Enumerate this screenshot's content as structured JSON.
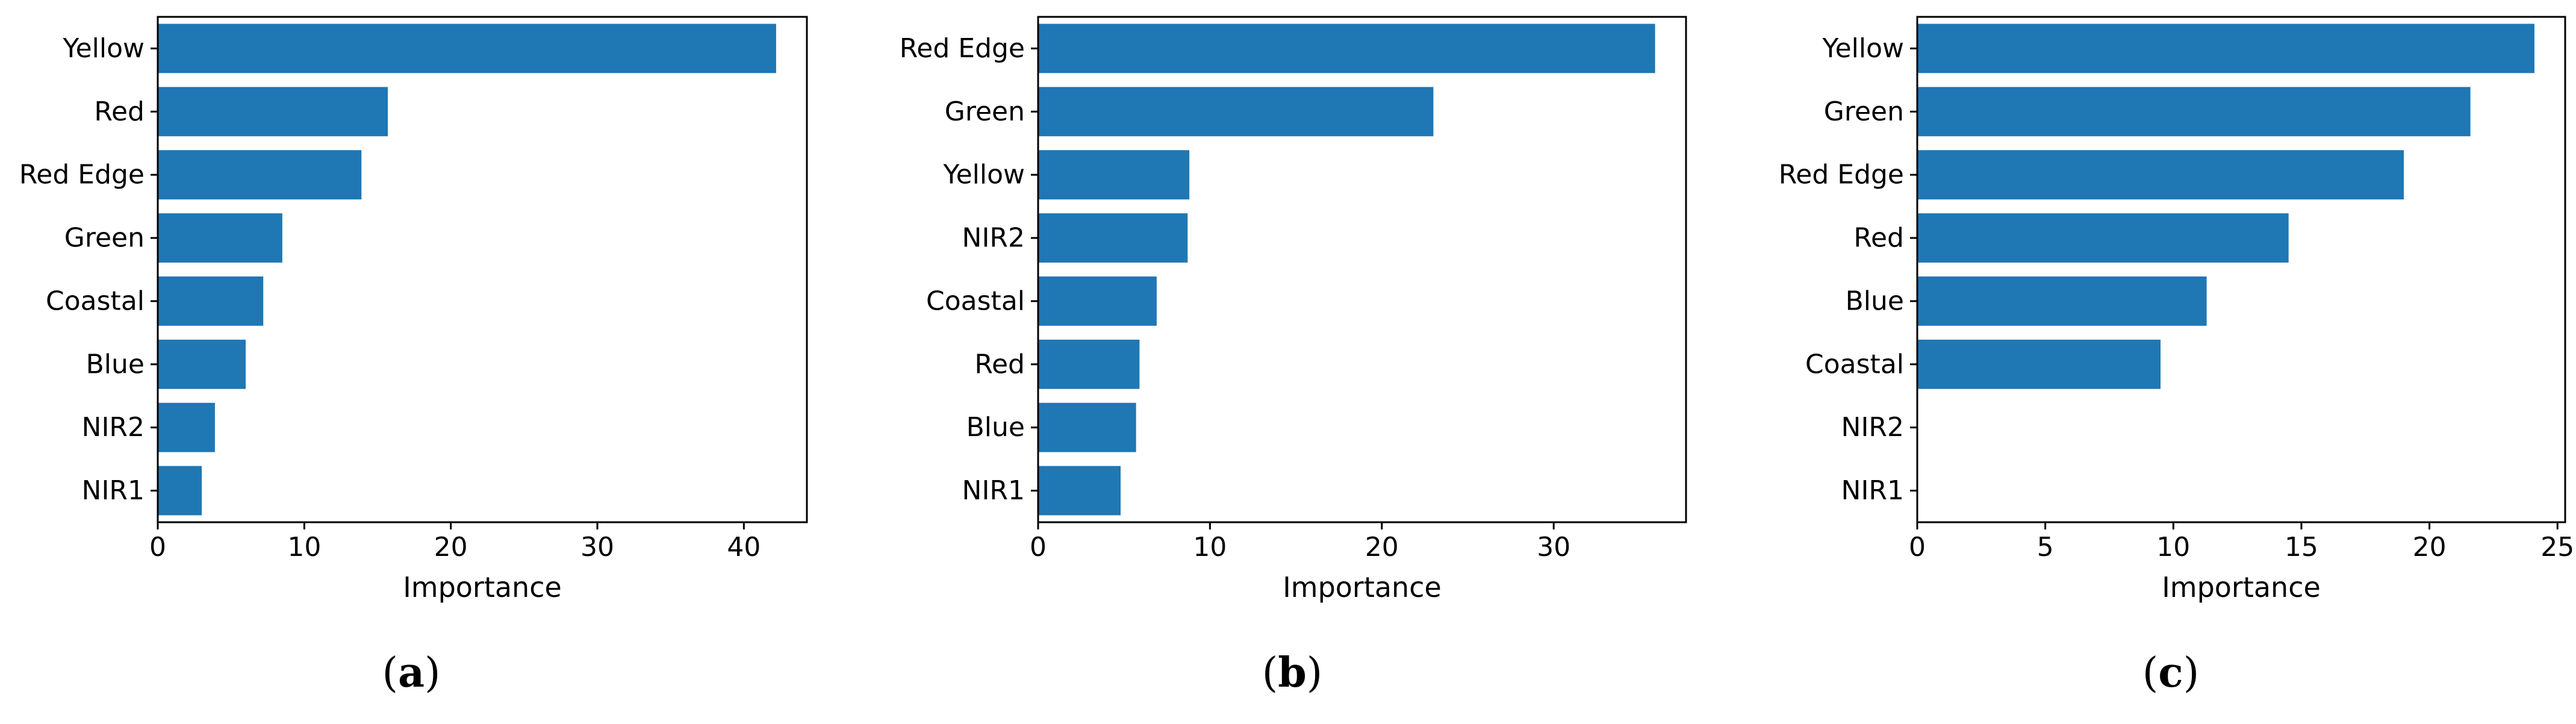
{
  "figure": {
    "bar_color": "#1f77b4",
    "captions": [
      {
        "open": "(",
        "letter": "a",
        "close": ")"
      },
      {
        "open": "(",
        "letter": "b",
        "close": ")"
      },
      {
        "open": "(",
        "letter": "c",
        "close": ")"
      }
    ]
  },
  "chart_data": [
    {
      "type": "bar",
      "orientation": "horizontal",
      "title": "",
      "xlabel": "Importance",
      "ylabel": "",
      "categories": [
        "Yellow",
        "Red",
        "Red Edge",
        "Green",
        "Coastal",
        "Blue",
        "NIR2",
        "NIR1"
      ],
      "values": [
        42.2,
        15.7,
        13.9,
        8.5,
        7.2,
        6.0,
        3.9,
        3.0
      ],
      "xlim": [
        0,
        44.3
      ],
      "xticks": [
        0,
        10,
        20,
        30,
        40
      ],
      "grid": false
    },
    {
      "type": "bar",
      "orientation": "horizontal",
      "title": "",
      "xlabel": "Importance",
      "ylabel": "",
      "categories": [
        "Red Edge",
        "Green",
        "Yellow",
        "NIR2",
        "Coastal",
        "Red",
        "Blue",
        "NIR1"
      ],
      "values": [
        35.9,
        23.0,
        8.8,
        8.7,
        6.9,
        5.9,
        5.7,
        4.8
      ],
      "xlim": [
        0,
        37.7
      ],
      "xticks": [
        0,
        10,
        20,
        30
      ],
      "grid": false
    },
    {
      "type": "bar",
      "orientation": "horizontal",
      "title": "",
      "xlabel": "Importance",
      "ylabel": "",
      "categories": [
        "Yellow",
        "Green",
        "Red Edge",
        "Red",
        "Blue",
        "Coastal",
        "NIR2",
        "NIR1"
      ],
      "values": [
        24.1,
        21.6,
        19.0,
        14.5,
        11.3,
        9.5,
        0,
        0
      ],
      "xlim": [
        0,
        25.3
      ],
      "xticks": [
        0,
        5,
        10,
        15,
        20,
        25
      ],
      "grid": false
    }
  ]
}
